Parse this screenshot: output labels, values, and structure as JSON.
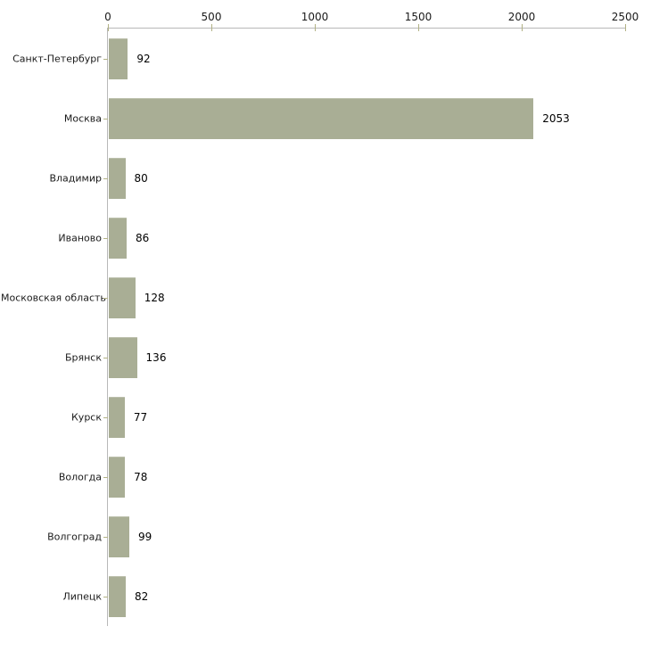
{
  "chart_data": {
    "type": "bar",
    "orientation": "horizontal",
    "title": "",
    "xlabel": "",
    "ylabel": "",
    "categories": [
      "Санкт-Петербург",
      "Москва",
      "Владимир",
      "Иваново",
      "Московская область",
      "Брянск",
      "Курск",
      "Вологда",
      "Волгоград",
      "Липецк"
    ],
    "values": [
      92,
      2053,
      80,
      86,
      128,
      136,
      77,
      78,
      99,
      82
    ],
    "xlim": [
      0,
      2500
    ],
    "xticks": [
      0,
      500,
      1000,
      1500,
      2000,
      2500
    ],
    "axis_position": "top",
    "grid": false,
    "legend": false,
    "value_labels": true,
    "colors": {
      "bar": "#a9ae95",
      "bar_edge": "#bcc0ac",
      "axis": "#b8b8b8",
      "tick": "#b2b285",
      "text": "#1a1a1a",
      "background": "#ffffff"
    }
  }
}
